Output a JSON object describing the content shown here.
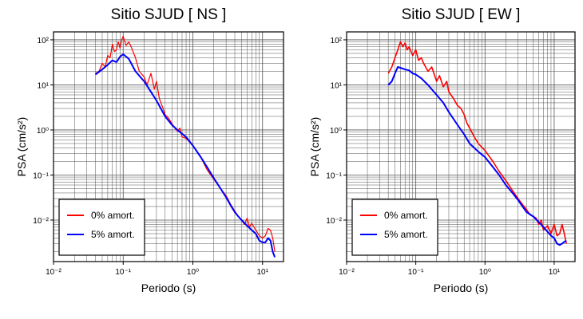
{
  "chart_data": [
    {
      "type": "line",
      "title": "Sitio SJUD [ NS ]",
      "xlabel": "Periodo (s)",
      "ylabel": "PSA (cm/s²)",
      "xscale": "log",
      "yscale": "log",
      "xlim": [
        0.01,
        20
      ],
      "ylim": [
        0.0012,
        150
      ],
      "x_ticks": [
        "10⁻²",
        "10⁻¹",
        "10⁰",
        "10¹"
      ],
      "y_ticks": [
        "10⁻²",
        "10⁻¹",
        "10⁰",
        "10¹",
        "10²"
      ],
      "grid": true,
      "legend_position": "bottom-left",
      "series": [
        {
          "name": "0% amort.",
          "color": "#ff0000",
          "x": [
            0.04,
            0.045,
            0.05,
            0.055,
            0.06,
            0.065,
            0.07,
            0.075,
            0.08,
            0.085,
            0.09,
            0.095,
            0.1,
            0.11,
            0.12,
            0.13,
            0.15,
            0.17,
            0.2,
            0.22,
            0.25,
            0.28,
            0.3,
            0.33,
            0.36,
            0.4,
            0.45,
            0.5,
            0.55,
            0.6,
            0.65,
            0.7,
            0.8,
            1.0,
            1.3,
            1.6,
            2.0,
            2.5,
            3.0,
            3.5,
            4.0,
            4.5,
            5.0,
            5.5,
            6.0,
            6.5,
            7.0,
            8.0,
            9.0,
            10.0,
            11.0,
            12.0,
            13.0,
            14.0,
            15.0
          ],
          "y": [
            18,
            20,
            30,
            25,
            45,
            40,
            80,
            55,
            60,
            90,
            65,
            100,
            120,
            75,
            90,
            70,
            40,
            20,
            15,
            10,
            18,
            8,
            12,
            5,
            3.5,
            2.2,
            1.8,
            1.4,
            1.1,
            0.95,
            1.1,
            0.7,
            0.65,
            0.45,
            0.25,
            0.13,
            0.08,
            0.05,
            0.035,
            0.022,
            0.016,
            0.012,
            0.01,
            0.008,
            0.011,
            0.007,
            0.0085,
            0.006,
            0.0045,
            0.004,
            0.0045,
            0.0065,
            0.006,
            0.004,
            0.002
          ]
        },
        {
          "name": "5% amort.",
          "color": "#0000ff",
          "x": [
            0.04,
            0.05,
            0.06,
            0.07,
            0.08,
            0.09,
            0.1,
            0.12,
            0.15,
            0.2,
            0.25,
            0.3,
            0.4,
            0.5,
            0.6,
            0.8,
            1.0,
            1.3,
            1.6,
            2.0,
            2.5,
            3.0,
            3.5,
            4.0,
            4.5,
            5.0,
            6.0,
            7.0,
            8.0,
            9.0,
            10.0,
            11.0,
            12.0,
            13.0,
            14.0,
            15.0
          ],
          "y": [
            17,
            22,
            28,
            35,
            32,
            42,
            48,
            38,
            20,
            12,
            7,
            4.5,
            2.0,
            1.3,
            1.0,
            0.7,
            0.45,
            0.25,
            0.15,
            0.085,
            0.05,
            0.032,
            0.021,
            0.015,
            0.012,
            0.01,
            0.0075,
            0.006,
            0.005,
            0.0035,
            0.0032,
            0.0032,
            0.004,
            0.0035,
            0.002,
            0.0015
          ]
        }
      ]
    },
    {
      "type": "line",
      "title": "Sitio SJUD [ EW ]",
      "xlabel": "Periodo (s)",
      "ylabel": "PSA (cm/s²)",
      "xscale": "log",
      "yscale": "log",
      "xlim": [
        0.01,
        20
      ],
      "ylim": [
        0.0012,
        150
      ],
      "x_ticks": [
        "10⁻²",
        "10⁻¹",
        "10⁰",
        "10¹"
      ],
      "y_ticks": [
        "10⁻²",
        "10⁻¹",
        "10⁰",
        "10¹",
        "10²"
      ],
      "grid": true,
      "legend_position": "bottom-left",
      "series": [
        {
          "name": "0% amort.",
          "color": "#ff0000",
          "x": [
            0.04,
            0.045,
            0.05,
            0.055,
            0.06,
            0.065,
            0.07,
            0.075,
            0.08,
            0.09,
            0.1,
            0.11,
            0.12,
            0.13,
            0.15,
            0.17,
            0.2,
            0.22,
            0.25,
            0.28,
            0.3,
            0.35,
            0.4,
            0.45,
            0.5,
            0.55,
            0.6,
            0.7,
            0.8,
            1.0,
            1.3,
            1.6,
            2.0,
            2.5,
            3.0,
            3.5,
            4.0,
            4.5,
            5.0,
            5.5,
            6.0,
            6.5,
            7.0,
            8.0,
            9.0,
            10.0,
            11.0,
            12.0,
            13.0,
            14.0,
            15.0
          ],
          "y": [
            18,
            25,
            40,
            60,
            90,
            70,
            85,
            60,
            70,
            45,
            60,
            35,
            40,
            30,
            20,
            25,
            12,
            16,
            9,
            12,
            7,
            5,
            3.5,
            3,
            2.2,
            1.4,
            1.1,
            0.7,
            0.5,
            0.35,
            0.2,
            0.12,
            0.075,
            0.045,
            0.03,
            0.022,
            0.017,
            0.013,
            0.012,
            0.011,
            0.008,
            0.01,
            0.006,
            0.0075,
            0.005,
            0.008,
            0.0045,
            0.005,
            0.008,
            0.005,
            0.003
          ]
        },
        {
          "name": "5% amort.",
          "color": "#0000ff",
          "x": [
            0.04,
            0.045,
            0.05,
            0.055,
            0.06,
            0.07,
            0.08,
            0.09,
            0.1,
            0.12,
            0.15,
            0.2,
            0.25,
            0.3,
            0.4,
            0.5,
            0.6,
            0.8,
            1.0,
            1.3,
            1.6,
            2.0,
            2.5,
            3.0,
            3.5,
            4.0,
            5.0,
            6.0,
            7.0,
            8.0,
            9.0,
            10.0,
            11.0,
            12.0,
            13.0,
            14.0,
            15.0
          ],
          "y": [
            10,
            12,
            18,
            25,
            24,
            22,
            21,
            18,
            17,
            14,
            10,
            6,
            4,
            2.5,
            1.3,
            0.8,
            0.5,
            0.33,
            0.25,
            0.15,
            0.1,
            0.06,
            0.04,
            0.028,
            0.02,
            0.015,
            0.012,
            0.009,
            0.007,
            0.0055,
            0.0045,
            0.004,
            0.003,
            0.0028,
            0.003,
            0.0033,
            0.0035
          ]
        }
      ]
    }
  ]
}
